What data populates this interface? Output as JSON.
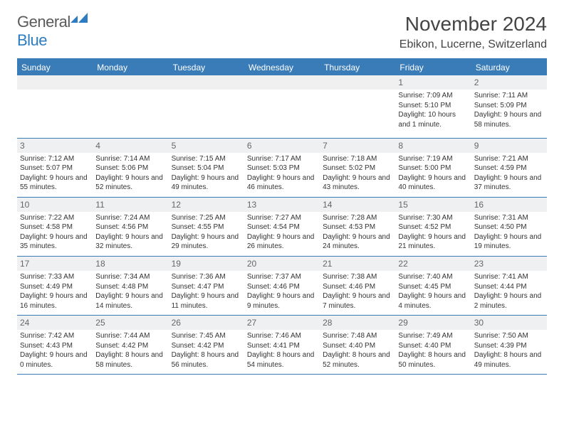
{
  "logo": {
    "text_general": "General",
    "text_blue": "Blue"
  },
  "header": {
    "month_title": "November 2024",
    "location": "Ebikon, Lucerne, Switzerland"
  },
  "colors": {
    "header_bg": "#3a7cb8",
    "header_text": "#ffffff",
    "daynum_bg": "#eef0f2",
    "border": "#3a7cb8",
    "body_text": "#333333",
    "logo_blue": "#2d7cc1"
  },
  "typography": {
    "month_fontsize": 28,
    "location_fontsize": 16,
    "dayheader_fontsize": 12,
    "cell_fontsize": 10
  },
  "calendar": {
    "day_headers": [
      "Sunday",
      "Monday",
      "Tuesday",
      "Wednesday",
      "Thursday",
      "Friday",
      "Saturday"
    ],
    "weeks": [
      [
        null,
        null,
        null,
        null,
        null,
        {
          "n": "1",
          "sunrise": "Sunrise: 7:09 AM",
          "sunset": "Sunset: 5:10 PM",
          "daylight": "Daylight: 10 hours and 1 minute."
        },
        {
          "n": "2",
          "sunrise": "Sunrise: 7:11 AM",
          "sunset": "Sunset: 5:09 PM",
          "daylight": "Daylight: 9 hours and 58 minutes."
        }
      ],
      [
        {
          "n": "3",
          "sunrise": "Sunrise: 7:12 AM",
          "sunset": "Sunset: 5:07 PM",
          "daylight": "Daylight: 9 hours and 55 minutes."
        },
        {
          "n": "4",
          "sunrise": "Sunrise: 7:14 AM",
          "sunset": "Sunset: 5:06 PM",
          "daylight": "Daylight: 9 hours and 52 minutes."
        },
        {
          "n": "5",
          "sunrise": "Sunrise: 7:15 AM",
          "sunset": "Sunset: 5:04 PM",
          "daylight": "Daylight: 9 hours and 49 minutes."
        },
        {
          "n": "6",
          "sunrise": "Sunrise: 7:17 AM",
          "sunset": "Sunset: 5:03 PM",
          "daylight": "Daylight: 9 hours and 46 minutes."
        },
        {
          "n": "7",
          "sunrise": "Sunrise: 7:18 AM",
          "sunset": "Sunset: 5:02 PM",
          "daylight": "Daylight: 9 hours and 43 minutes."
        },
        {
          "n": "8",
          "sunrise": "Sunrise: 7:19 AM",
          "sunset": "Sunset: 5:00 PM",
          "daylight": "Daylight: 9 hours and 40 minutes."
        },
        {
          "n": "9",
          "sunrise": "Sunrise: 7:21 AM",
          "sunset": "Sunset: 4:59 PM",
          "daylight": "Daylight: 9 hours and 37 minutes."
        }
      ],
      [
        {
          "n": "10",
          "sunrise": "Sunrise: 7:22 AM",
          "sunset": "Sunset: 4:58 PM",
          "daylight": "Daylight: 9 hours and 35 minutes."
        },
        {
          "n": "11",
          "sunrise": "Sunrise: 7:24 AM",
          "sunset": "Sunset: 4:56 PM",
          "daylight": "Daylight: 9 hours and 32 minutes."
        },
        {
          "n": "12",
          "sunrise": "Sunrise: 7:25 AM",
          "sunset": "Sunset: 4:55 PM",
          "daylight": "Daylight: 9 hours and 29 minutes."
        },
        {
          "n": "13",
          "sunrise": "Sunrise: 7:27 AM",
          "sunset": "Sunset: 4:54 PM",
          "daylight": "Daylight: 9 hours and 26 minutes."
        },
        {
          "n": "14",
          "sunrise": "Sunrise: 7:28 AM",
          "sunset": "Sunset: 4:53 PM",
          "daylight": "Daylight: 9 hours and 24 minutes."
        },
        {
          "n": "15",
          "sunrise": "Sunrise: 7:30 AM",
          "sunset": "Sunset: 4:52 PM",
          "daylight": "Daylight: 9 hours and 21 minutes."
        },
        {
          "n": "16",
          "sunrise": "Sunrise: 7:31 AM",
          "sunset": "Sunset: 4:50 PM",
          "daylight": "Daylight: 9 hours and 19 minutes."
        }
      ],
      [
        {
          "n": "17",
          "sunrise": "Sunrise: 7:33 AM",
          "sunset": "Sunset: 4:49 PM",
          "daylight": "Daylight: 9 hours and 16 minutes."
        },
        {
          "n": "18",
          "sunrise": "Sunrise: 7:34 AM",
          "sunset": "Sunset: 4:48 PM",
          "daylight": "Daylight: 9 hours and 14 minutes."
        },
        {
          "n": "19",
          "sunrise": "Sunrise: 7:36 AM",
          "sunset": "Sunset: 4:47 PM",
          "daylight": "Daylight: 9 hours and 11 minutes."
        },
        {
          "n": "20",
          "sunrise": "Sunrise: 7:37 AM",
          "sunset": "Sunset: 4:46 PM",
          "daylight": "Daylight: 9 hours and 9 minutes."
        },
        {
          "n": "21",
          "sunrise": "Sunrise: 7:38 AM",
          "sunset": "Sunset: 4:46 PM",
          "daylight": "Daylight: 9 hours and 7 minutes."
        },
        {
          "n": "22",
          "sunrise": "Sunrise: 7:40 AM",
          "sunset": "Sunset: 4:45 PM",
          "daylight": "Daylight: 9 hours and 4 minutes."
        },
        {
          "n": "23",
          "sunrise": "Sunrise: 7:41 AM",
          "sunset": "Sunset: 4:44 PM",
          "daylight": "Daylight: 9 hours and 2 minutes."
        }
      ],
      [
        {
          "n": "24",
          "sunrise": "Sunrise: 7:42 AM",
          "sunset": "Sunset: 4:43 PM",
          "daylight": "Daylight: 9 hours and 0 minutes."
        },
        {
          "n": "25",
          "sunrise": "Sunrise: 7:44 AM",
          "sunset": "Sunset: 4:42 PM",
          "daylight": "Daylight: 8 hours and 58 minutes."
        },
        {
          "n": "26",
          "sunrise": "Sunrise: 7:45 AM",
          "sunset": "Sunset: 4:42 PM",
          "daylight": "Daylight: 8 hours and 56 minutes."
        },
        {
          "n": "27",
          "sunrise": "Sunrise: 7:46 AM",
          "sunset": "Sunset: 4:41 PM",
          "daylight": "Daylight: 8 hours and 54 minutes."
        },
        {
          "n": "28",
          "sunrise": "Sunrise: 7:48 AM",
          "sunset": "Sunset: 4:40 PM",
          "daylight": "Daylight: 8 hours and 52 minutes."
        },
        {
          "n": "29",
          "sunrise": "Sunrise: 7:49 AM",
          "sunset": "Sunset: 4:40 PM",
          "daylight": "Daylight: 8 hours and 50 minutes."
        },
        {
          "n": "30",
          "sunrise": "Sunrise: 7:50 AM",
          "sunset": "Sunset: 4:39 PM",
          "daylight": "Daylight: 8 hours and 49 minutes."
        }
      ]
    ]
  }
}
